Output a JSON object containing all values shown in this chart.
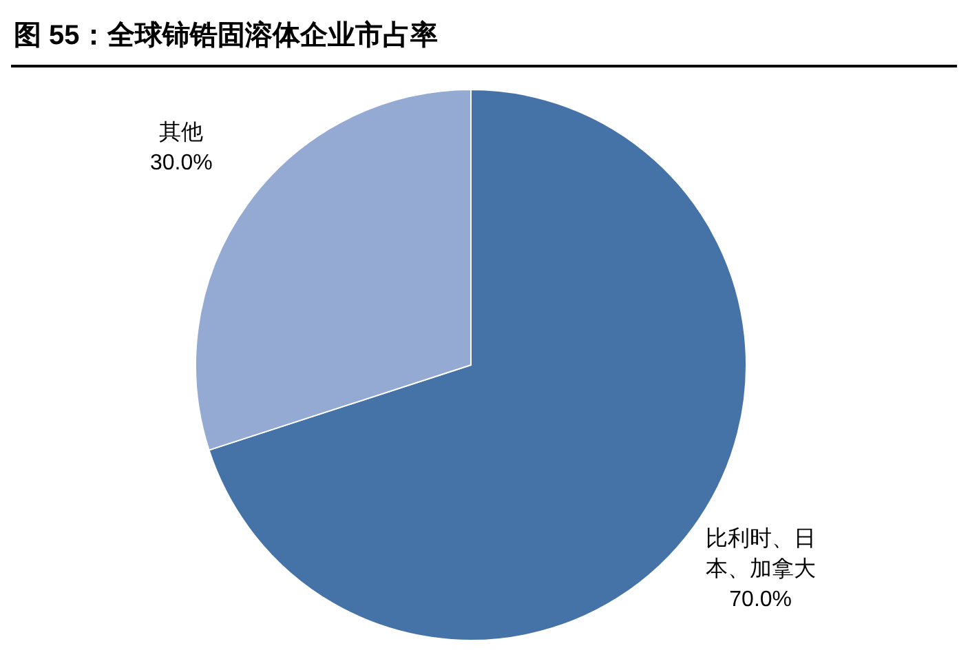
{
  "chart_data": {
    "type": "pie",
    "title": "图 55：全球铈锆固溶体企业市占率",
    "categories": [
      "比利时、日本、加拿大",
      "其他"
    ],
    "values": [
      70,
      30
    ],
    "colors": [
      "#4573a7",
      "#95aad2"
    ],
    "value_labels": [
      "70.0%",
      "30.0%"
    ]
  }
}
